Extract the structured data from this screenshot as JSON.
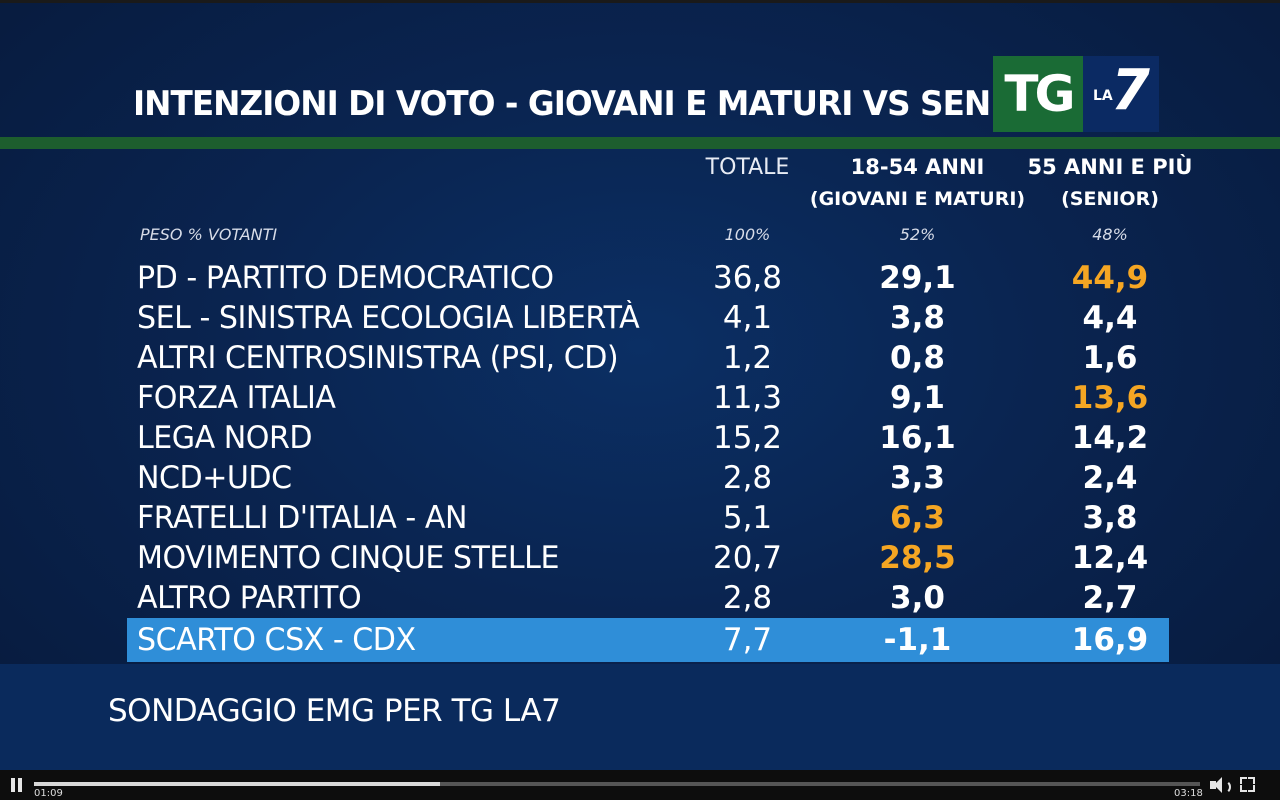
{
  "broadcast": {
    "title": "INTENZIONI DI VOTO - GIOVANI E MATURI VS SENIOR",
    "logo": {
      "tg": "TG",
      "la": "LA",
      "seven": "7"
    },
    "columns": {
      "totale": "TOTALE",
      "giovani_line1": "18-54 ANNI",
      "giovani_line2": "(GIOVANI E MATURI)",
      "senior_line1": "55 ANNI E PIÙ",
      "senior_line2": "(SENIOR)"
    },
    "peso": {
      "label": "PESO % VOTANTI",
      "totale": "100%",
      "giovani": "52%",
      "senior": "48%"
    },
    "rows": [
      {
        "party": "PD - PARTITO DEMOCRATICO",
        "totale": "36,8",
        "giovani": "29,1",
        "senior": "44,9"
      },
      {
        "party": "SEL - SINISTRA ECOLOGIA LIBERTÀ",
        "totale": "4,1",
        "giovani": "3,8",
        "senior": "4,4"
      },
      {
        "party": "ALTRI CENTROSINISTRA (PSI, CD)",
        "totale": "1,2",
        "giovani": "0,8",
        "senior": "1,6"
      },
      {
        "party": "FORZA ITALIA",
        "totale": "11,3",
        "giovani": "9,1",
        "senior": "13,6"
      },
      {
        "party": "LEGA NORD",
        "totale": "15,2",
        "giovani": "16,1",
        "senior": "14,2"
      },
      {
        "party": "NCD+UDC",
        "totale": "2,8",
        "giovani": "3,3",
        "senior": "2,4"
      },
      {
        "party": "FRATELLI D'ITALIA - AN",
        "totale": "5,1",
        "giovani": "6,3",
        "senior": "3,8"
      },
      {
        "party": "MOVIMENTO CINQUE STELLE",
        "totale": "20,7",
        "giovani": "28,5",
        "senior": "12,4"
      },
      {
        "party": "ALTRO PARTITO",
        "totale": "2,8",
        "giovani": "3,0",
        "senior": "2,7"
      },
      {
        "party": "SCARTO CSX - CDX",
        "totale": "7,7",
        "giovani": "-1,1",
        "senior": "16,9"
      }
    ],
    "highlights": {
      "color": "#f5a623",
      "scarto_bg": "#2f8ed8",
      "green_bar": "#1d5e2e"
    },
    "source": "SONDAGGIO EMG PER TG LA7"
  },
  "player": {
    "current_time": "01:09",
    "duration": "03:18",
    "progress_fraction": 0.348,
    "controls": {
      "play_state": "pause-icon",
      "volume": "volume-icon",
      "fullscreen": "fullscreen-icon"
    }
  }
}
